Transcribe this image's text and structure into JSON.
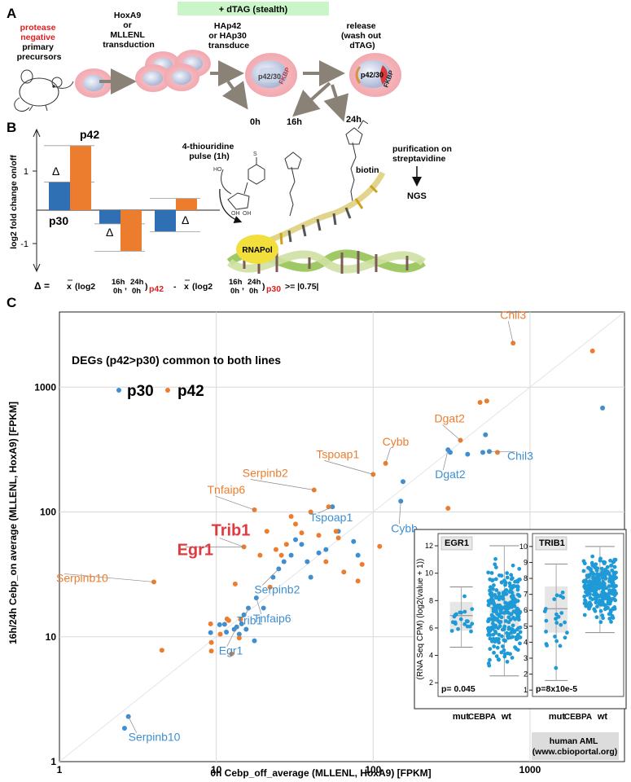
{
  "panel_a": {
    "letter": "A",
    "dtag_banner": "+ dTAG (stealth)",
    "cell_label": [
      "protease",
      "negative",
      "primary",
      "precursors"
    ],
    "hoxa_label": [
      "HoxA9",
      "or",
      "MLLENL",
      "transduction"
    ],
    "hap_label": [
      "HAp42",
      "or HAp30",
      "transduce"
    ],
    "release_label": [
      "release",
      "(wash out",
      "dTAG)"
    ],
    "construct_text": "p42/30",
    "fkbp_text": "FKBP",
    "time_0h": "0h",
    "time_16h": "16h",
    "time_24h": "24h",
    "pulse_label": [
      "4-thiouridine",
      "pulse (1h)"
    ],
    "biotin_label": "biotin",
    "purification_label": [
      "purification on",
      "streptavidine"
    ],
    "ngs_label": "NGS",
    "rnapol_label": "RNAPol"
  },
  "panel_b": {
    "letter": "B",
    "ylabel": "log2 fold change on/off",
    "tick_pos": "1",
    "tick_neg": "-1",
    "p42_label": "p42",
    "p30_label": "p30",
    "delta": "Δ",
    "bars": [
      {
        "p30": 0.72,
        "p42": 1.65
      },
      {
        "p30": -0.35,
        "p42": -1.05
      },
      {
        "p30": -0.55,
        "p42": 0.3
      }
    ],
    "formula": {
      "lead": "Δ =",
      "xbar": "x",
      "log": "(log2",
      "frac1_num": "16h",
      "frac1_den": "0h",
      "comma": ",",
      "frac2_num": "24h",
      "frac2_den": "0h",
      "close": ")",
      "sub_p42": "p42",
      "minus": "-",
      "sub_p30": "p30",
      "tail": ">= |0.75|"
    }
  },
  "panel_c": {
    "letter": "C",
    "legend_title": "DEGs (p42>p30) common to both lines",
    "legend_p30": "p30",
    "legend_p42": "p42",
    "xlabel": "0h Cebp_off_average (MLLENL, HoxA9) [FPKM]",
    "ylabel": "16h/24h Cebp_on average (MLLENL, HoxA9) [FPKM]",
    "colors": {
      "p30": "#3f8fd0",
      "p42": "#ec7d2f",
      "highlight": "#e03a3e"
    },
    "inset": {
      "ylabel": "(RNA Seq CPM) (log2(value + 1))",
      "groups": [
        "mut",
        "wt"
      ],
      "cebpa": "CEBPA",
      "footer": [
        "human AML",
        "(www.cbioportal.org)"
      ]
    }
  },
  "chart_data": [
    {
      "type": "scatter",
      "title": "DEGs (p42>p30) common to both lines",
      "xlabel": "0h Cebp_off_average (MLLENL, HoxA9) [FPKM]",
      "ylabel": "16h/24h Cebp_on average (MLLENL, HoxA9) [FPKM]",
      "xscale": "log",
      "yscale": "log",
      "xlim": [
        1,
        4000
      ],
      "ylim": [
        1,
        4000
      ],
      "xticks": [
        "1",
        "10",
        "100",
        "1000"
      ],
      "yticks": [
        "1",
        "10",
        "100",
        "1000"
      ],
      "series": [
        {
          "name": "p30",
          "color": "#3f8fd0",
          "points": [
            [
              2.6,
              1.85
            ],
            [
              2.75,
              2.3
            ],
            [
              9.2,
              10.8
            ],
            [
              10.5,
              12.5
            ],
            [
              11.3,
              12.6
            ],
            [
              11.6,
              10.9
            ],
            [
              13,
              11.5
            ],
            [
              13.5,
              12
            ],
            [
              14,
              10.5
            ],
            [
              14.5,
              12.7
            ],
            [
              15,
              15
            ],
            [
              15.5,
              11.5
            ],
            [
              16,
              17
            ],
            [
              17.5,
              9.3
            ],
            [
              18,
              20.5
            ],
            [
              20,
              17
            ],
            [
              23,
              30
            ],
            [
              25,
              35
            ],
            [
              27,
              40
            ],
            [
              30,
              45
            ],
            [
              32,
              60
            ],
            [
              35,
              55
            ],
            [
              38,
              40
            ],
            [
              40,
              30
            ],
            [
              45,
              47
            ],
            [
              50,
              50
            ],
            [
              55,
              110
            ],
            [
              60,
              70
            ],
            [
              75,
              58
            ],
            [
              80,
              45
            ],
            [
              150,
              122
            ],
            [
              155,
              175
            ],
            [
              300,
              315
            ],
            [
              310,
              300
            ],
            [
              400,
              290
            ],
            [
              500,
              300
            ],
            [
              520,
              415
            ],
            [
              550,
              305
            ],
            [
              2900,
              680
            ]
          ]
        },
        {
          "name": "p42",
          "color": "#ec7d2f",
          "points": [
            [
              4,
              27.5
            ],
            [
              4.5,
              7.8
            ],
            [
              9.2,
              12.7
            ],
            [
              9.3,
              9
            ],
            [
              9.3,
              7.7
            ],
            [
              10.6,
              10.5
            ],
            [
              11.7,
              13.9
            ],
            [
              12,
              13.5
            ],
            [
              12.5,
              7.3
            ],
            [
              13.2,
              26.5
            ],
            [
              14,
              9.8
            ],
            [
              14.3,
              13.8
            ],
            [
              15,
              52.5
            ],
            [
              17.5,
              104
            ],
            [
              19,
              45
            ],
            [
              21,
              70
            ],
            [
              22,
              25
            ],
            [
              24,
              50
            ],
            [
              26,
              45
            ],
            [
              28,
              55
            ],
            [
              30,
              92
            ],
            [
              32,
              80
            ],
            [
              35,
              68
            ],
            [
              40,
              100
            ],
            [
              42,
              150
            ],
            [
              45,
              65
            ],
            [
              50,
              40
            ],
            [
              52,
              110
            ],
            [
              58,
              70
            ],
            [
              60,
              62
            ],
            [
              65,
              33
            ],
            [
              80,
              28
            ],
            [
              85,
              38
            ],
            [
              100,
              200
            ],
            [
              110,
              53
            ],
            [
              120,
              245
            ],
            [
              300,
              107
            ],
            [
              360,
              375
            ],
            [
              480,
              755
            ],
            [
              530,
              775
            ],
            [
              620,
              300
            ],
            [
              780,
              2250
            ],
            [
              2500,
              1950
            ]
          ]
        }
      ],
      "annotations": [
        {
          "text": "Chil3",
          "series": "p42",
          "x": 780,
          "y": 2250
        },
        {
          "text": "Dgat2",
          "series": "p42",
          "x": 360,
          "y": 375
        },
        {
          "text": "Tspoap1",
          "series": "p42",
          "x": 100,
          "y": 200
        },
        {
          "text": "Cybb",
          "series": "p42",
          "x": 120,
          "y": 245
        },
        {
          "text": "Serpinb2",
          "series": "p42",
          "x": 42,
          "y": 150
        },
        {
          "text": "Tnfaip6",
          "series": "p42",
          "x": 17.5,
          "y": 104
        },
        {
          "text": "Trib1",
          "series": "highlight",
          "x": 15,
          "y": 52.5
        },
        {
          "text": "Egr1",
          "series": "highlight",
          "x": 15,
          "y": 52.5
        },
        {
          "text": "Serpinb10",
          "series": "p42",
          "x": 4,
          "y": 27.5
        },
        {
          "text": "Chil3",
          "series": "p30",
          "x": 550,
          "y": 305
        },
        {
          "text": "Dgat2",
          "series": "p30",
          "x": 300,
          "y": 315
        },
        {
          "text": "Tspoap1",
          "series": "p30",
          "x": 55,
          "y": 110
        },
        {
          "text": "Cybb",
          "series": "p30",
          "x": 150,
          "y": 122
        },
        {
          "text": "Serpinb2",
          "series": "p30",
          "x": 25,
          "y": 35
        },
        {
          "text": "Tnfaip6",
          "series": "p30",
          "x": 18,
          "y": 20.5
        },
        {
          "text": "Trib1",
          "series": "p30",
          "x": 16,
          "y": 17
        },
        {
          "text": "Egr1",
          "series": "p30",
          "x": 13.5,
          "y": 12
        },
        {
          "text": "Serpinb10",
          "series": "p30",
          "x": 2.75,
          "y": 2.3
        }
      ]
    },
    {
      "type": "box",
      "title": "EGR1",
      "ylabel": "(RNA Seq CPM) (log2(value + 1))",
      "ylim": [
        1,
        12.3
      ],
      "yticks": [
        "2",
        "4",
        "6",
        "8",
        "10",
        "12"
      ],
      "categories": [
        "mut",
        "wt"
      ],
      "pvalue": "p= 0.045",
      "boxes": [
        {
          "group": "mut",
          "whisker_low": 4.6,
          "q1": 5.8,
          "median": 6.9,
          "q3": 7.9,
          "whisker_high": 9.0,
          "n": 22
        },
        {
          "group": "wt",
          "whisker_low": 2.5,
          "q1": 6.1,
          "median": 7.5,
          "q3": 8.8,
          "whisker_high": 12.0,
          "n": 260
        }
      ]
    },
    {
      "type": "box",
      "title": "TRIB1",
      "ylabel": "",
      "ylim": [
        0.6,
        10.3
      ],
      "yticks": [
        "1",
        "2",
        "3",
        "4",
        "5",
        "6",
        "7",
        "8",
        "9",
        "10"
      ],
      "categories": [
        "mut",
        "wt"
      ],
      "pvalue": "p=8x10e-5",
      "boxes": [
        {
          "group": "mut",
          "whisker_low": 1.6,
          "q1": 4.6,
          "median": 6.1,
          "q3": 7.5,
          "whisker_high": 8.9,
          "n": 24
        },
        {
          "group": "wt",
          "whisker_low": 4.6,
          "q1": 7.3,
          "median": 8.0,
          "q3": 8.7,
          "whisker_high": 10.0,
          "n": 260
        }
      ]
    }
  ]
}
